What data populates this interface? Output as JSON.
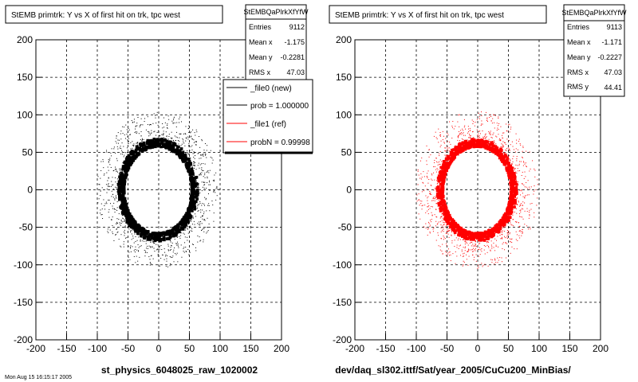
{
  "panels": [
    {
      "title": "StEMB primtrk: Y vs X of first hit on trk, tpc west",
      "xlabel": "st_physics_6048025_raw_1020002",
      "color": "#000000",
      "stats": {
        "name": "StEMBQaPlrkXfYfW",
        "rows": [
          {
            "key": "Entries",
            "val": "9112"
          },
          {
            "key": "Mean x",
            "val": "-1.175"
          },
          {
            "key": "Mean y",
            "val": "-0.2281"
          },
          {
            "key": "RMS x",
            "val": "47.03"
          }
        ]
      },
      "legend": [
        {
          "label": "_file0 (new)",
          "color": "#000000"
        },
        {
          "label": "prob = 1.000000",
          "color": "#000000"
        },
        {
          "label": "_file1 (ref)",
          "color": "#ff0000"
        },
        {
          "label": "probN = 0.99998",
          "color": "#ff0000"
        }
      ]
    },
    {
      "title": "StEMB primtrk: Y vs X of first hit on trk, tpc west",
      "xlabel": "dev/daq_sl302.ittf/Sat/year_2005/CuCu200_MinBias/",
      "color": "#ff0000",
      "stats": {
        "name": "StEMBQaPlrkXfYfW",
        "rows": [
          {
            "key": "Entries",
            "val": "9113"
          },
          {
            "key": "Mean x",
            "val": "-1.171"
          },
          {
            "key": "Mean y",
            "val": "-0.2227"
          },
          {
            "key": "RMS x",
            "val": "47.03"
          },
          {
            "key": "RMS y",
            "val": "44.41"
          }
        ]
      }
    }
  ],
  "footer_text": "Mon Aug 15 16:15:17 2005",
  "chart_data": [
    {
      "type": "scatter",
      "title": "StEMB primtrk: Y vs X of first hit on trk, tpc west",
      "xlabel": "st_physics_6048025_raw_1020002",
      "ylabel": "",
      "xlim": [
        -200,
        200
      ],
      "ylim": [
        -200,
        200
      ],
      "xticks": [
        -200,
        -150,
        -100,
        -50,
        0,
        50,
        100,
        150,
        200
      ],
      "yticks": [
        -200,
        -150,
        -100,
        -50,
        0,
        50,
        100,
        150,
        200
      ],
      "grid": true,
      "series": [
        {
          "name": "_file0 (new)",
          "color": "#000000",
          "shape": "ring",
          "inner_radius": 55,
          "outer_radius": 85,
          "center": [
            -1.175,
            -0.2281
          ]
        }
      ]
    },
    {
      "type": "scatter",
      "title": "StEMB primtrk: Y vs X of first hit on trk, tpc west",
      "xlabel": "dev/daq_sl302.ittf/Sat/year_2005/CuCu200_MinBias/",
      "ylabel": "",
      "xlim": [
        -200,
        200
      ],
      "ylim": [
        -200,
        200
      ],
      "xticks": [
        -200,
        -150,
        -100,
        -50,
        0,
        50,
        100,
        150,
        200
      ],
      "yticks": [
        -200,
        -150,
        -100,
        -50,
        0,
        50,
        100,
        150,
        200
      ],
      "grid": true,
      "series": [
        {
          "name": "_file1 (ref)",
          "color": "#ff0000",
          "shape": "ring",
          "inner_radius": 55,
          "outer_radius": 85,
          "center": [
            -1.171,
            -0.2227
          ]
        }
      ]
    }
  ]
}
